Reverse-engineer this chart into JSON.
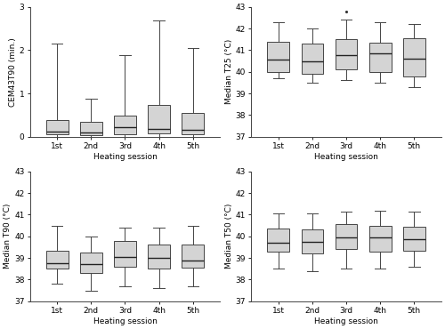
{
  "sessions": [
    "1st",
    "2nd",
    "3rd",
    "4th",
    "5th"
  ],
  "cem43t90": {
    "ylabel": "CEM43T90 (min.)",
    "ylim": [
      0,
      3
    ],
    "yticks": [
      0,
      1,
      2,
      3
    ],
    "boxes": [
      {
        "q1": 0.05,
        "median": 0.12,
        "q3": 0.38,
        "whislo": 0.0,
        "whishi": 2.15,
        "fliers": []
      },
      {
        "q1": 0.04,
        "median": 0.1,
        "q3": 0.35,
        "whislo": 0.0,
        "whishi": 0.88,
        "fliers": []
      },
      {
        "q1": 0.05,
        "median": 0.22,
        "q3": 0.48,
        "whislo": 0.0,
        "whishi": 1.88,
        "fliers": []
      },
      {
        "q1": 0.08,
        "median": 0.18,
        "q3": 0.73,
        "whislo": 0.0,
        "whishi": 2.68,
        "fliers": []
      },
      {
        "q1": 0.05,
        "median": 0.15,
        "q3": 0.55,
        "whislo": 0.0,
        "whishi": 2.05,
        "fliers": []
      }
    ]
  },
  "median_t25": {
    "ylabel": "Median T25 (°C)",
    "ylim": [
      37,
      43
    ],
    "yticks": [
      37,
      38,
      39,
      40,
      41,
      42,
      43
    ],
    "boxes": [
      {
        "q1": 40.0,
        "median": 40.55,
        "q3": 41.4,
        "whislo": 39.7,
        "whishi": 42.3,
        "fliers": []
      },
      {
        "q1": 39.9,
        "median": 40.5,
        "q3": 41.3,
        "whislo": 39.5,
        "whishi": 42.0,
        "fliers": []
      },
      {
        "q1": 40.1,
        "median": 40.75,
        "q3": 41.5,
        "whislo": 39.6,
        "whishi": 42.4,
        "fliers": [
          42.8
        ]
      },
      {
        "q1": 40.0,
        "median": 40.85,
        "q3": 41.35,
        "whislo": 39.5,
        "whishi": 42.3,
        "fliers": []
      },
      {
        "q1": 39.8,
        "median": 40.6,
        "q3": 41.55,
        "whislo": 39.3,
        "whishi": 42.2,
        "fliers": []
      }
    ]
  },
  "median_t90": {
    "ylabel": "Median T90 (°C)",
    "ylim": [
      37,
      43
    ],
    "yticks": [
      37,
      38,
      39,
      40,
      41,
      42,
      43
    ],
    "boxes": [
      {
        "q1": 38.5,
        "median": 38.75,
        "q3": 39.35,
        "whislo": 37.8,
        "whishi": 40.5,
        "fliers": []
      },
      {
        "q1": 38.3,
        "median": 38.7,
        "q3": 39.25,
        "whislo": 37.5,
        "whishi": 40.0,
        "fliers": []
      },
      {
        "q1": 38.6,
        "median": 39.05,
        "q3": 39.8,
        "whislo": 37.7,
        "whishi": 40.4,
        "fliers": []
      },
      {
        "q1": 38.5,
        "median": 39.0,
        "q3": 39.6,
        "whislo": 37.6,
        "whishi": 40.4,
        "fliers": []
      },
      {
        "q1": 38.55,
        "median": 38.9,
        "q3": 39.6,
        "whislo": 37.7,
        "whishi": 40.5,
        "fliers": []
      }
    ]
  },
  "median_t50": {
    "ylabel": "Median T50 (°C)",
    "ylim": [
      37,
      43
    ],
    "yticks": [
      37,
      38,
      39,
      40,
      41,
      42,
      43
    ],
    "boxes": [
      {
        "q1": 39.3,
        "median": 39.7,
        "q3": 40.35,
        "whislo": 38.5,
        "whishi": 41.05,
        "fliers": []
      },
      {
        "q1": 39.2,
        "median": 39.75,
        "q3": 40.3,
        "whislo": 38.4,
        "whishi": 41.05,
        "fliers": []
      },
      {
        "q1": 39.4,
        "median": 39.95,
        "q3": 40.55,
        "whislo": 38.5,
        "whishi": 41.15,
        "fliers": []
      },
      {
        "q1": 39.3,
        "median": 39.95,
        "q3": 40.5,
        "whislo": 38.5,
        "whishi": 41.2,
        "fliers": []
      },
      {
        "q1": 39.35,
        "median": 39.85,
        "q3": 40.45,
        "whislo": 38.6,
        "whishi": 41.15,
        "fliers": []
      }
    ]
  },
  "xlabel": "Heating session",
  "box_facecolor": "#d4d4d4",
  "box_edgecolor": "#444444",
  "median_color": "#222222",
  "whisker_color": "#444444",
  "flier_color": "#333333",
  "background_color": "#ffffff"
}
